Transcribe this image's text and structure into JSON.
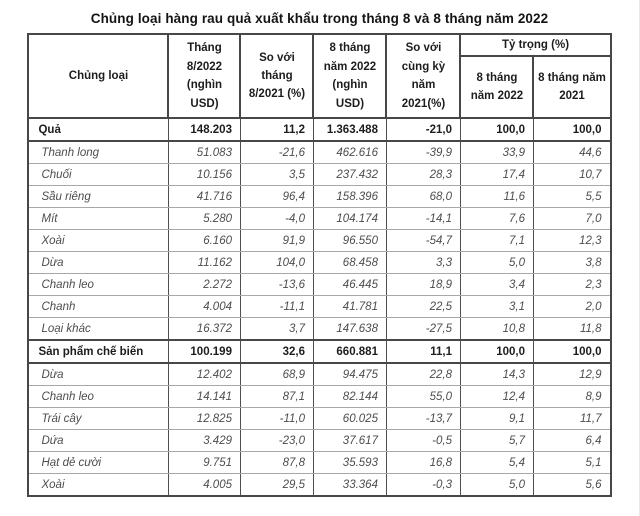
{
  "title": "Chủng loại hàng rau quả xuất khẩu trong tháng 8 và 8 tháng năm 2022",
  "chart_data": {
    "type": "table",
    "title": "Chủng loại hàng rau quả xuất khẩu trong tháng 8 và 8 tháng năm 2022",
    "headers": {
      "category": "Chủng loại",
      "month_value": "Tháng 8/2022 (nghìn USD)",
      "month_change": "So với tháng 8/2021 (%)",
      "ytd_value": "8 tháng năm 2022 (nghìn USD)",
      "ytd_change": "So với cùng kỳ năm 2021(%)",
      "share_group": "Tỷ trọng (%)",
      "share_2022": "8 tháng năm 2022",
      "share_2021": "8 tháng năm 2021"
    },
    "rows": [
      {
        "label": "Quả",
        "style": "group",
        "values": [
          "148.203",
          "11,2",
          "1.363.488",
          "-21,0",
          "100,0",
          "100,0"
        ]
      },
      {
        "label": "Thanh long",
        "style": "item",
        "values": [
          "51.083",
          "-21,6",
          "462.616",
          "-39,9",
          "33,9",
          "44,6"
        ]
      },
      {
        "label": "Chuối",
        "style": "item",
        "values": [
          "10.156",
          "3,5",
          "237.432",
          "28,3",
          "17,4",
          "10,7"
        ]
      },
      {
        "label": "Sầu riêng",
        "style": "item",
        "values": [
          "41.716",
          "96,4",
          "158.396",
          "68,0",
          "11,6",
          "5,5"
        ]
      },
      {
        "label": "Mít",
        "style": "item",
        "values": [
          "5.280",
          "-4,0",
          "104.174",
          "-14,1",
          "7,6",
          "7,0"
        ]
      },
      {
        "label": "Xoài",
        "style": "item",
        "values": [
          "6.160",
          "91,9",
          "96.550",
          "-54,7",
          "7,1",
          "12,3"
        ]
      },
      {
        "label": "Dừa",
        "style": "item",
        "values": [
          "11.162",
          "104,0",
          "68.458",
          "3,3",
          "5,0",
          "3,8"
        ]
      },
      {
        "label": "Chanh leo",
        "style": "item",
        "values": [
          "2.272",
          "-13,6",
          "46.445",
          "18,9",
          "3,4",
          "2,3"
        ]
      },
      {
        "label": "Chanh",
        "style": "item",
        "values": [
          "4.004",
          "-11,1",
          "41.781",
          "22,5",
          "3,1",
          "2,0"
        ]
      },
      {
        "label": "Loại khác",
        "style": "item",
        "values": [
          "16.372",
          "3,7",
          "147.638",
          "-27,5",
          "10,8",
          "11,8"
        ]
      },
      {
        "label": "Sản phẩm chế biến",
        "style": "group",
        "values": [
          "100.199",
          "32,6",
          "660.881",
          "11,1",
          "100,0",
          "100,0"
        ]
      },
      {
        "label": "Dừa",
        "style": "item",
        "values": [
          "12.402",
          "68,9",
          "94.475",
          "22,8",
          "14,3",
          "12,9"
        ]
      },
      {
        "label": "Chanh leo",
        "style": "item",
        "values": [
          "14.141",
          "87,1",
          "82.144",
          "55,0",
          "12,4",
          "8,9"
        ]
      },
      {
        "label": "Trái cây",
        "style": "item",
        "values": [
          "12.825",
          "-11,0",
          "60.025",
          "-13,7",
          "9,1",
          "11,7"
        ]
      },
      {
        "label": "Dứa",
        "style": "item",
        "values": [
          "3.429",
          "-23,0",
          "37.617",
          "-0,5",
          "5,7",
          "6,4"
        ]
      },
      {
        "label": "Hạt dẻ cười",
        "style": "item",
        "values": [
          "9.751",
          "87,8",
          "35.593",
          "16,8",
          "5,4",
          "5,1"
        ]
      },
      {
        "label": "Xoài",
        "style": "item",
        "values": [
          "4.005",
          "29,5",
          "33.364",
          "-0,3",
          "5,0",
          "5,6"
        ]
      }
    ]
  }
}
